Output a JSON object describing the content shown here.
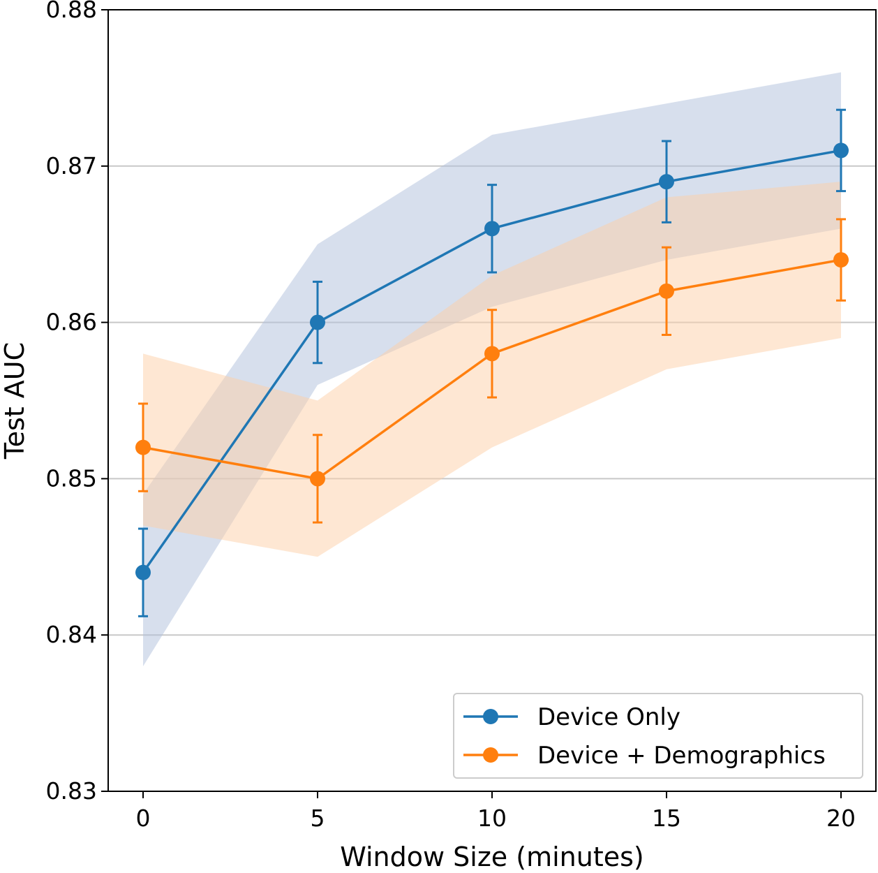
{
  "chart_data": {
    "type": "line",
    "title": "",
    "xlabel": "Window Size (minutes)",
    "ylabel": "Test AUC",
    "x": [
      0,
      5,
      10,
      15,
      20
    ],
    "xlim": [
      -1,
      21
    ],
    "ylim": [
      0.83,
      0.88
    ],
    "xticks": [
      0,
      5,
      10,
      15,
      20
    ],
    "yticks": [
      0.83,
      0.84,
      0.85,
      0.86,
      0.87,
      0.88
    ],
    "xtick_labels": [
      "0",
      "5",
      "10",
      "15",
      "20"
    ],
    "ytick_labels": [
      "0.83",
      "0.84",
      "0.85",
      "0.86",
      "0.87",
      "0.88"
    ],
    "grid": "horizontal",
    "legend_position": "lower-right",
    "series": [
      {
        "name": "Device Only",
        "color": "#1f77b4",
        "band_color": "#b0bfdc",
        "values": [
          0.844,
          0.86,
          0.866,
          0.869,
          0.871
        ],
        "err": [
          0.0028,
          0.0026,
          0.0028,
          0.0026,
          0.0026
        ],
        "band_low": [
          0.838,
          0.856,
          0.861,
          0.864,
          0.866
        ],
        "band_high": [
          0.849,
          0.865,
          0.872,
          0.874,
          0.876
        ]
      },
      {
        "name": "Device + Demographics",
        "color": "#ff7f0e",
        "band_color": "#fdd0a8",
        "values": [
          0.852,
          0.85,
          0.858,
          0.862,
          0.864
        ],
        "err": [
          0.0028,
          0.0028,
          0.0028,
          0.0028,
          0.0026
        ],
        "band_low": [
          0.847,
          0.845,
          0.852,
          0.857,
          0.859
        ],
        "band_high": [
          0.858,
          0.855,
          0.863,
          0.868,
          0.869
        ]
      }
    ]
  }
}
